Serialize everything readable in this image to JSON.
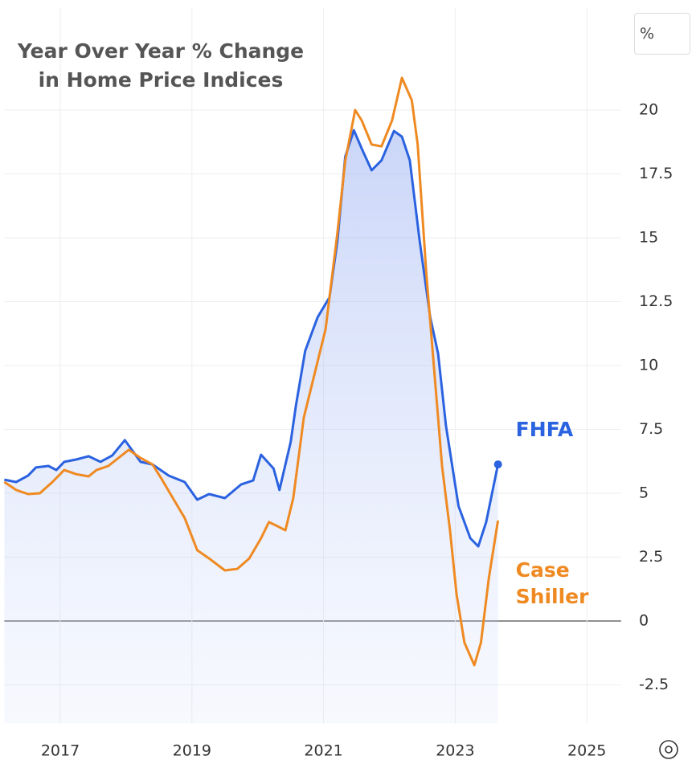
{
  "chart_data": {
    "type": "line",
    "title": "Year Over Year % Change in Home Price Indices",
    "y_unit": "%",
    "xlim": [
      2016.15,
      2025.52
    ],
    "xticks": [
      2017,
      2019,
      2021,
      2023,
      2025
    ],
    "ylim": [
      -4,
      24
    ],
    "yticks": [
      -2.5,
      0,
      2.5,
      5,
      7.5,
      10,
      12.5,
      15,
      17.5,
      20
    ],
    "grid": true,
    "series": [
      {
        "name": "FHFA",
        "color": "#2a62e0",
        "area": true,
        "x": [
          2016.15,
          2016.33,
          2016.51,
          2016.63,
          2016.82,
          2016.94,
          2017.06,
          2017.24,
          2017.43,
          2017.61,
          2017.79,
          2017.98,
          2018.22,
          2018.4,
          2018.65,
          2018.89,
          2019.08,
          2019.26,
          2019.5,
          2019.75,
          2019.93,
          2020.05,
          2020.24,
          2020.33,
          2020.5,
          2020.58,
          2020.72,
          2020.91,
          2021.09,
          2021.21,
          2021.33,
          2021.46,
          2021.58,
          2021.73,
          2021.88,
          2022.07,
          2022.19,
          2022.31,
          2022.46,
          2022.62,
          2022.74,
          2022.86,
          2023.05,
          2023.23,
          2023.35,
          2023.47,
          2023.65
        ],
        "values": [
          5.53,
          5.44,
          5.69,
          6.01,
          6.07,
          5.91,
          6.23,
          6.32,
          6.45,
          6.23,
          6.48,
          7.08,
          6.23,
          6.13,
          5.69,
          5.44,
          4.75,
          4.97,
          4.81,
          5.35,
          5.5,
          6.51,
          5.97,
          5.13,
          7.01,
          8.43,
          10.57,
          11.89,
          12.67,
          14.87,
          18.18,
          19.21,
          18.49,
          17.64,
          18.03,
          19.18,
          18.96,
          18.03,
          14.87,
          11.89,
          10.47,
          7.64,
          4.5,
          3.24,
          2.92,
          3.87,
          6.13
        ]
      },
      {
        "name": "Case Shiller",
        "color": "#ef8a22",
        "area": false,
        "x": [
          2016.15,
          2016.33,
          2016.51,
          2016.69,
          2016.88,
          2017.06,
          2017.24,
          2017.43,
          2017.55,
          2017.73,
          2018.04,
          2018.22,
          2018.4,
          2018.53,
          2018.71,
          2018.89,
          2019.08,
          2019.26,
          2019.5,
          2019.69,
          2019.87,
          2020.05,
          2020.17,
          2020.3,
          2020.42,
          2020.54,
          2020.7,
          2020.85,
          2021.03,
          2021.21,
          2021.33,
          2021.48,
          2021.58,
          2021.73,
          2021.88,
          2022.04,
          2022.19,
          2022.34,
          2022.43,
          2022.56,
          2022.68,
          2022.8,
          2022.92,
          2023.02,
          2023.14,
          2023.29,
          2023.39,
          2023.51,
          2023.65
        ],
        "values": [
          5.44,
          5.13,
          4.97,
          5.0,
          5.44,
          5.91,
          5.75,
          5.66,
          5.91,
          6.07,
          6.7,
          6.38,
          6.13,
          5.6,
          4.81,
          4.03,
          2.77,
          2.45,
          1.98,
          2.04,
          2.45,
          3.24,
          3.87,
          3.71,
          3.55,
          4.81,
          7.96,
          9.53,
          11.42,
          15.19,
          18.02,
          20.0,
          19.59,
          18.65,
          18.58,
          19.59,
          21.26,
          20.38,
          18.65,
          13.62,
          9.84,
          6.07,
          3.55,
          1.04,
          -0.85,
          -1.73,
          -0.85,
          1.67,
          3.93
        ]
      }
    ]
  }
}
